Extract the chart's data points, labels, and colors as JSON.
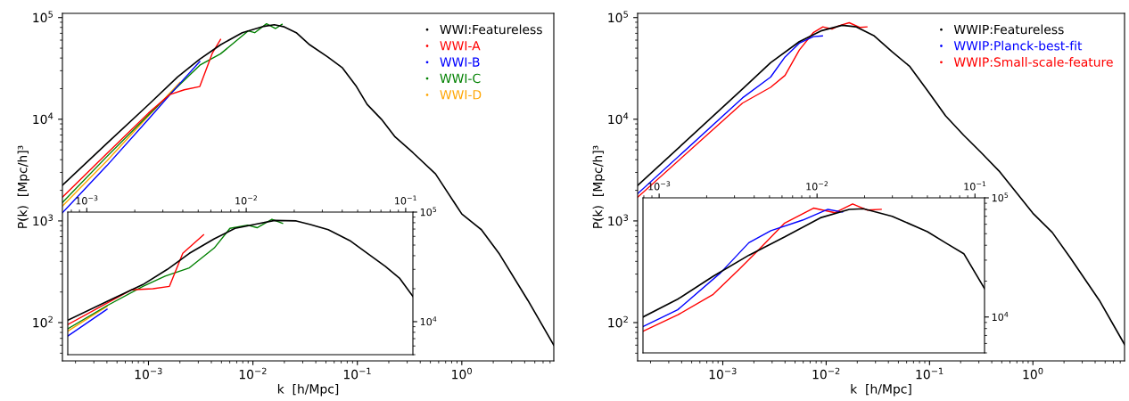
{
  "chart_data": [
    {
      "type": "line",
      "xlabel": "k  [h/Mpc]",
      "ylabel": "P(k)  [Mpc/h]³",
      "log": "xy",
      "legend": "top right",
      "xlim": [
        0.00015,
        7.6
      ],
      "ylim": [
        42,
        110000
      ],
      "xticks": [
        {
          "value": 0.001,
          "label": "10$^{−3}$"
        },
        {
          "value": 0.01,
          "label": "10$^{−2}$"
        },
        {
          "value": 0.1,
          "label": "10$^{−1}$"
        },
        {
          "value": 1,
          "label": "10$^{0}$"
        }
      ],
      "yticks": [
        {
          "value": 100,
          "label": "10$^{2}$"
        },
        {
          "value": 1000,
          "label": "10$^{3}$"
        },
        {
          "value": 10000,
          "label": "10$^{4}$"
        },
        {
          "value": 100000,
          "label": "10$^{5}$"
        }
      ],
      "series": [
        {
          "name": "WWI:Featureless",
          "color": "#000000",
          "x": [
            0.00015,
            0.0004,
            0.001,
            0.0019,
            0.0031,
            0.0049,
            0.0079,
            0.0127,
            0.016,
            0.02,
            0.026,
            0.035,
            0.052,
            0.072,
            0.098,
            0.124,
            0.17,
            0.23,
            0.34,
            0.56,
            1.0,
            1.54,
            2.3,
            4.3,
            7.6
          ],
          "values": [
            2240,
            5800,
            13900,
            26000,
            39000,
            54000,
            71000,
            82000,
            85000,
            81000,
            71000,
            54000,
            41000,
            32000,
            21000,
            14000,
            10000,
            6700,
            4700,
            2900,
            1170,
            820,
            470,
            165,
            60
          ]
        },
        {
          "name": "WWI-A",
          "color": "#ff0000",
          "x": [
            0.00015,
            0.0004,
            0.001,
            0.0016,
            0.0022,
            0.0031,
            0.0041,
            0.0049
          ],
          "values": [
            1710,
            4600,
            11500,
            17500,
            19500,
            21000,
            45000,
            61000
          ]
        },
        {
          "name": "WWI-B",
          "color": "#0000ff",
          "x": [
            0.00015,
            0.0004,
            0.001,
            0.002,
            0.0031
          ],
          "values": [
            1200,
            3500,
            10000,
            22500,
            37000
          ]
        },
        {
          "name": "WWI-C",
          "color": "#008000",
          "x": [
            0.00015,
            0.0004,
            0.001,
            0.002,
            0.0031,
            0.0049,
            0.0079,
            0.009,
            0.0104,
            0.0135,
            0.0165,
            0.019
          ],
          "values": [
            1520,
            4300,
            11000,
            22000,
            34000,
            44000,
            66000,
            74000,
            71000,
            87000,
            78000,
            86000
          ]
        },
        {
          "name": "WWI-D",
          "color": "#ffa500",
          "x": [
            0.00015,
            0.0004,
            0.001,
            0.002
          ],
          "values": [
            1400,
            3900,
            10800,
            23000
          ]
        }
      ]
    },
    {
      "type": "line",
      "log": "xy",
      "xlim": [
        0.00076,
        0.111
      ],
      "ylim": [
        5000,
        100000
      ],
      "xticks": [
        {
          "value": 0.001,
          "label": "10$^{−3}$"
        },
        {
          "value": 0.01,
          "label": "10$^{−2}$"
        },
        {
          "value": 0.1,
          "label": "10$^{−1}$"
        }
      ],
      "yticks": [
        {
          "value": 10000,
          "label": "10$^{4}$"
        },
        {
          "value": 100000,
          "label": "10$^{5}$"
        }
      ],
      "series": [
        {
          "color": "#000000",
          "x": [
            0.00076,
            0.00134,
            0.00225,
            0.0032,
            0.0044,
            0.0063,
            0.0085,
            0.0117,
            0.0151,
            0.0206,
            0.0253,
            0.0327,
            0.0446,
            0.0576,
            0.0745,
            0.0914,
            0.111
          ],
          "values": [
            10300,
            15300,
            21800,
            30000,
            42000,
            57000,
            71000,
            78000,
            84000,
            83000,
            77000,
            69000,
            55000,
            42000,
            32000,
            25000,
            17000
          ]
        },
        {
          "color": "#ff0000",
          "x": [
            0.00076,
            0.00134,
            0.0019,
            0.0026,
            0.0033,
            0.004,
            0.0054
          ],
          "values": [
            9400,
            14800,
            19500,
            20000,
            21000,
            42000,
            62000
          ]
        },
        {
          "color": "#0000ff",
          "x": [
            0.00076,
            0.00134
          ],
          "values": [
            7400,
            13000
          ]
        },
        {
          "color": "#008000",
          "x": [
            0.00076,
            0.00134,
            0.00225,
            0.0031,
            0.0044,
            0.0063,
            0.0079,
            0.0102,
            0.0117,
            0.0145,
            0.0169
          ],
          "values": [
            8600,
            14000,
            21000,
            26000,
            31000,
            47000,
            71000,
            76000,
            72000,
            86000,
            79000
          ]
        },
        {
          "color": "#ffa500",
          "x": [
            0.00076,
            0.00134
          ],
          "values": [
            8200,
            13800
          ]
        }
      ]
    },
    {
      "type": "line",
      "xlabel": "k  [h/Mpc]",
      "ylabel": "P(k)  [Mpc/h]³",
      "log": "xy",
      "legend": "top right",
      "xlim": [
        0.00015,
        7.7
      ],
      "ylim": [
        42,
        110000
      ],
      "xticks": [
        {
          "value": 0.001,
          "label": "10$^{−3}$"
        },
        {
          "value": 0.01,
          "label": "10$^{−2}$"
        },
        {
          "value": 0.1,
          "label": "10$^{−1}$"
        },
        {
          "value": 1,
          "label": "10$^{0}$"
        }
      ],
      "yticks": [
        {
          "value": 100,
          "label": "10$^{2}$"
        },
        {
          "value": 1000,
          "label": "10$^{3}$"
        },
        {
          "value": 10000,
          "label": "10$^{4}$"
        },
        {
          "value": 100000,
          "label": "10$^{5}$"
        }
      ],
      "series": [
        {
          "name": "WWIP:Featureless",
          "color": "#000000",
          "x": [
            0.00015,
            0.00155,
            0.0029,
            0.0055,
            0.0089,
            0.0143,
            0.0196,
            0.0292,
            0.0435,
            0.0645,
            0.096,
            0.143,
            0.213,
            0.316,
            0.47,
            1.0,
            1.54,
            2.3,
            4.4,
            7.7
          ],
          "values": [
            2230,
            19800,
            36000,
            58000,
            74000,
            84000,
            81000,
            66000,
            46000,
            33000,
            19000,
            10800,
            7000,
            4700,
            3100,
            1190,
            770,
            435,
            165,
            61
          ]
        },
        {
          "name": "WWIP:Planck-best-fit",
          "color": "#0000ff",
          "x": [
            0.00015,
            0.00155,
            0.0029,
            0.004,
            0.0055,
            0.0075,
            0.0092
          ],
          "values": [
            1850,
            16200,
            26000,
            41000,
            56000,
            65000,
            66000
          ]
        },
        {
          "name": "WWIP:Small-scale-feature",
          "color": "#ff0000",
          "x": [
            0.00015,
            0.00155,
            0.0029,
            0.004,
            0.0055,
            0.0075,
            0.0093,
            0.0114,
            0.0133,
            0.0167,
            0.0213,
            0.0248
          ],
          "values": [
            1710,
            14400,
            20600,
            27000,
            48000,
            71000,
            81000,
            77000,
            83000,
            89000,
            80000,
            81000
          ]
        }
      ]
    },
    {
      "type": "line",
      "log": "xy",
      "xlim": [
        0.00079,
        0.115
      ],
      "ylim": [
        5000,
        100000
      ],
      "xticks": [
        {
          "value": 0.001,
          "label": "10$^{−3}$"
        },
        {
          "value": 0.01,
          "label": "10$^{−2}$"
        },
        {
          "value": 0.1,
          "label": "10$^{−1}$"
        }
      ],
      "yticks": [
        {
          "value": 10000,
          "label": "10$^{4}$"
        },
        {
          "value": 100000,
          "label": "10$^{5}$"
        }
      ],
      "series": [
        {
          "color": "#000000",
          "x": [
            0.00079,
            0.00131,
            0.0022,
            0.0037,
            0.00625,
            0.0105,
            0.016,
            0.0197,
            0.0299,
            0.05,
            0.065,
            0.085,
            0.115
          ],
          "values": [
            10000,
            14100,
            22000,
            33000,
            47000,
            68000,
            80000,
            81000,
            70000,
            52000,
            42000,
            34000,
            17300
          ]
        },
        {
          "color": "#0000ff",
          "x": [
            0.00079,
            0.00131,
            0.00245,
            0.0037,
            0.0051,
            0.0081,
            0.0117,
            0.0145
          ],
          "values": [
            8300,
            11500,
            23500,
            42000,
            53000,
            65000,
            80000,
            76000
          ]
        },
        {
          "color": "#ff0000",
          "x": [
            0.00079,
            0.00131,
            0.0022,
            0.0032,
            0.0043,
            0.0062,
            0.0095,
            0.013,
            0.0168,
            0.0207,
            0.0255
          ],
          "values": [
            7600,
            10400,
            15500,
            25000,
            37000,
            61000,
            82000,
            75000,
            89000,
            79000,
            80000
          ]
        }
      ]
    }
  ]
}
